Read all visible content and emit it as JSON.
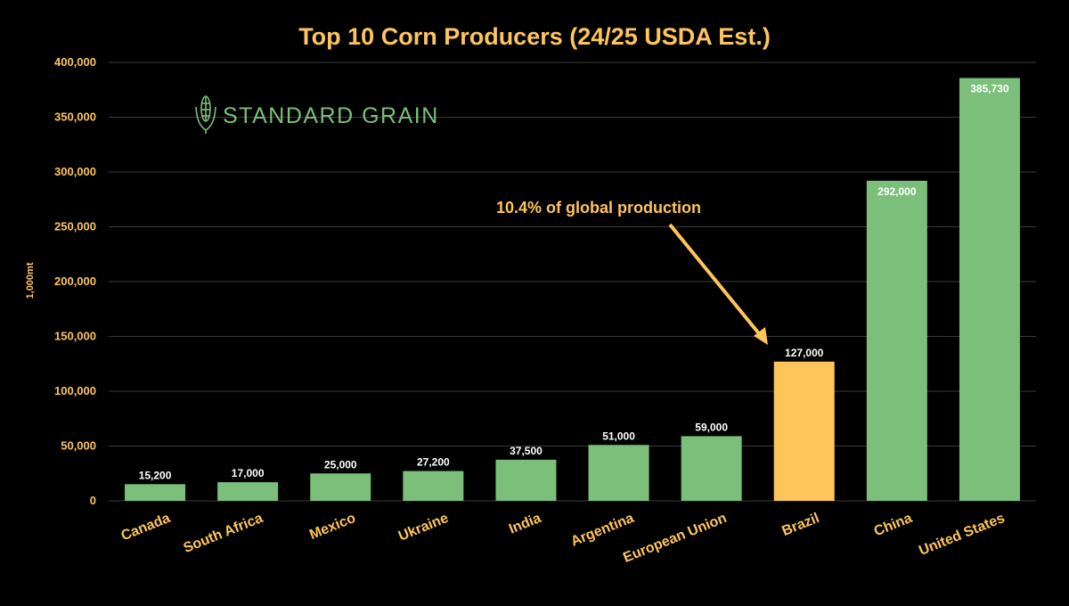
{
  "chart_data": {
    "type": "bar",
    "title": "Top 10 Corn Producers (24/25 USDA Est.)",
    "ylabel": "1,000mt",
    "xlabel": "",
    "ylim": [
      0,
      400000
    ],
    "yticks": [
      0,
      50000,
      100000,
      150000,
      200000,
      250000,
      300000,
      350000,
      400000
    ],
    "ytick_labels": [
      "0",
      "50,000",
      "100,000",
      "150,000",
      "200,000",
      "250,000",
      "300,000",
      "350,000",
      "400,000"
    ],
    "categories": [
      "Canada",
      "South Africa",
      "Mexico",
      "Ukraine",
      "India",
      "Argentina",
      "European Union",
      "Brazil",
      "China",
      "United States"
    ],
    "values": [
      15200,
      17000,
      25000,
      27200,
      37500,
      51000,
      59000,
      127000,
      292000,
      385730
    ],
    "value_labels": [
      "15,200",
      "17,000",
      "25,000",
      "27,200",
      "37,500",
      "51,000",
      "59,000",
      "127,000",
      "292,000",
      "385,730"
    ],
    "highlight_category": "Brazil",
    "grid": true,
    "annotation": {
      "text": "10.4% of global production",
      "target": "Brazil"
    }
  },
  "watermark": {
    "text": "STANDARD GRAIN",
    "icon": "corn-icon"
  },
  "colors": {
    "background": "#000000",
    "bar": "#7bbf7a",
    "highlight": "#fec55b",
    "accent_text": "#fec55b",
    "grid": "#3a3a3a",
    "value_label": "#ffffff",
    "watermark": "#7bbf7a"
  }
}
